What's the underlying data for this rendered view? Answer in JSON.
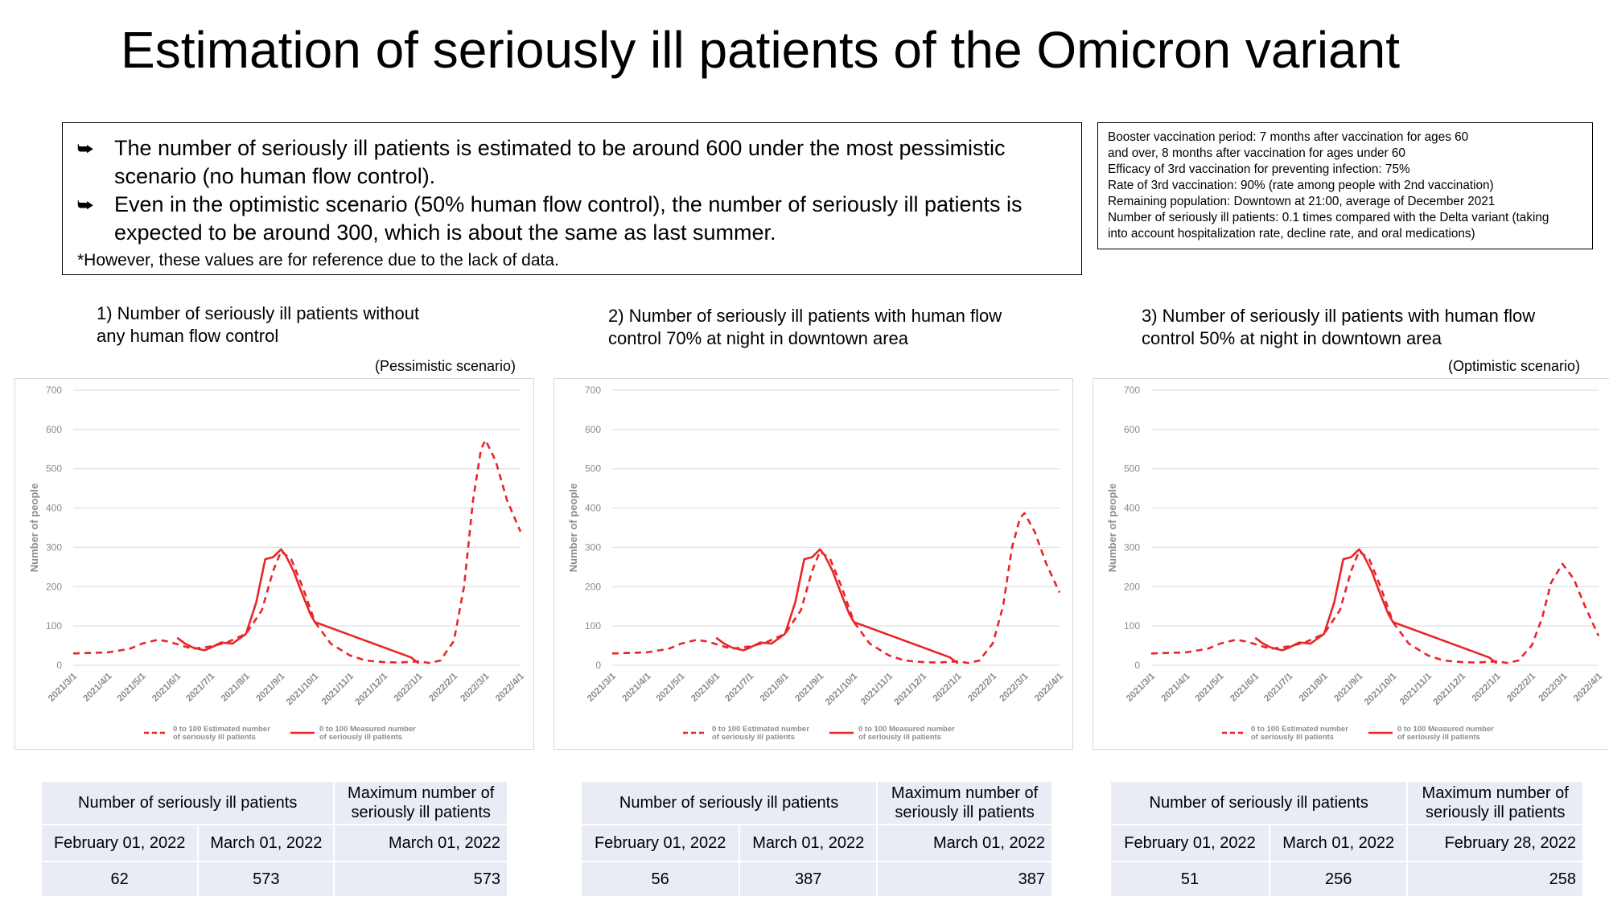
{
  "title": "Estimation of seriously ill patients of the Omicron variant",
  "summary": {
    "bullets": [
      "The number of seriously ill patients is estimated to be around 600 under the most pessimistic scenario (no human flow control).",
      "Even in the optimistic scenario (50% human flow control), the number of seriously ill patients is expected to be around 300, which is about the same as last summer."
    ],
    "note": "*However, these values are for reference due to the lack of data."
  },
  "assumptions": [
    "Booster vaccination period: 7 months after vaccination for ages 60",
    "and over, 8 months after vaccination for ages under 60",
    "Efficacy of 3rd vaccination for preventing infection: 75%",
    "Rate of 3rd vaccination: 90% (rate among people with 2nd vaccination)",
    "Remaining population: Downtown at 21:00, average of December 2021",
    "Number of seriously ill patients: 0.1 times compared with the Delta variant (taking",
    "into account hospitalization rate, decline rate, and oral medications)"
  ],
  "panels": [
    {
      "title_lines": [
        "1) Number of seriously ill patients without",
        "any human flow control"
      ],
      "scenario": "(Pessimistic scenario)",
      "table": {
        "header_left": "Number of seriously ill patients",
        "header_right_lines": [
          "Maximum number of",
          "seriously ill patients"
        ],
        "date1": "February 01, 2022",
        "date2": "March 01, 2022",
        "date3": "March 01, 2022",
        "v1": "62",
        "v2": "573",
        "v3": "573"
      }
    },
    {
      "title_lines": [
        "2) Number of seriously ill patients with human flow",
        "control 70% at night in downtown area"
      ],
      "scenario": "",
      "table": {
        "header_left": "Number of seriously ill patients",
        "header_right_lines": [
          "Maximum number of",
          "seriously ill patients"
        ],
        "date1": "February 01, 2022",
        "date2": "March 01, 2022",
        "date3": "March 01, 2022",
        "v1": "56",
        "v2": "387",
        "v3": "387"
      }
    },
    {
      "title_lines": [
        "3) Number of seriously ill patients with human flow",
        "control 50% at night in downtown area"
      ],
      "scenario": "(Optimistic scenario)",
      "table": {
        "header_left": "Number of seriously ill patients",
        "header_right_lines": [
          "Maximum number of",
          "seriously ill patients"
        ],
        "date1": "February 01, 2022",
        "date2": "March 01, 2022",
        "date3": "February 28, 2022",
        "v1": "51",
        "v2": "256",
        "v3": "258"
      }
    }
  ],
  "colors": {
    "series": "#e8262a",
    "grid": "#d9d9d9",
    "axis_text": "#8c8c8c"
  },
  "chart_data": [
    {
      "type": "line",
      "title": "",
      "xlabel": "",
      "ylabel": "Number of people",
      "ylim": [
        0,
        700
      ],
      "yticks": [
        0,
        100,
        200,
        300,
        400,
        500,
        600,
        700
      ],
      "xlim": [
        "2021/3/1",
        "2022/4/1"
      ],
      "xticks": [
        "2021/3/1",
        "2021/4/1",
        "2021/5/1",
        "2021/6/1",
        "2021/7/1",
        "2021/8/1",
        "2021/9/1",
        "2021/10/1",
        "2021/11/1",
        "2021/12/1",
        "2022/1/1",
        "2022/2/1",
        "2022/3/1",
        "2022/4/1"
      ],
      "grid": true,
      "legend": "bottom",
      "series": [
        {
          "name": "0 to 100 Estimated number of seriously ill patients",
          "style": "dashed",
          "x": [
            "2021/3/1",
            "2021/4/1",
            "2021/4/20",
            "2021/5/1",
            "2021/5/15",
            "2021/5/25",
            "2021/6/5",
            "2021/6/15",
            "2021/7/1",
            "2021/7/15",
            "2021/8/1",
            "2021/8/15",
            "2021/8/25",
            "2021/9/1",
            "2021/9/10",
            "2021/9/20",
            "2021/10/1",
            "2021/10/15",
            "2021/11/1",
            "2021/11/15",
            "2021/12/1",
            "2021/12/15",
            "2022/1/1",
            "2022/1/10",
            "2022/1/20",
            "2022/2/1",
            "2022/2/10",
            "2022/2/18",
            "2022/2/25",
            "2022/3/1",
            "2022/3/10",
            "2022/3/20",
            "2022/4/1"
          ],
          "y": [
            30,
            33,
            42,
            55,
            65,
            60,
            50,
            42,
            48,
            58,
            80,
            140,
            240,
            290,
            270,
            200,
            110,
            55,
            25,
            12,
            8,
            7,
            10,
            6,
            12,
            62,
            200,
            420,
            550,
            573,
            520,
            420,
            340
          ]
        },
        {
          "name": "0 to 100 Measured number of seriously ill patients",
          "style": "solid",
          "x": [
            "2021/6/1",
            "2021/6/8",
            "2021/6/15",
            "2021/6/25",
            "2021/7/1",
            "2021/7/10",
            "2021/7/20",
            "2021/8/1",
            "2021/8/10",
            "2021/8/18",
            "2021/8/25",
            "2021/9/1",
            "2021/9/5",
            "2021/9/12",
            "2021/9/20",
            "2021/9/27",
            "2021/10/1",
            "2021/12/25",
            "2022/1/1"
          ],
          "y": [
            70,
            55,
            45,
            38,
            45,
            58,
            55,
            80,
            160,
            270,
            275,
            295,
            280,
            240,
            180,
            130,
            110,
            20,
            5
          ]
        }
      ]
    },
    {
      "type": "line",
      "title": "",
      "xlabel": "",
      "ylabel": "Number of people",
      "ylim": [
        0,
        700
      ],
      "yticks": [
        0,
        100,
        200,
        300,
        400,
        500,
        600,
        700
      ],
      "xlim": [
        "2021/3/1",
        "2022/4/1"
      ],
      "xticks": [
        "2021/3/1",
        "2021/4/1",
        "2021/5/1",
        "2021/6/1",
        "2021/7/1",
        "2021/8/1",
        "2021/9/1",
        "2021/10/1",
        "2021/11/1",
        "2021/12/1",
        "2022/1/1",
        "2022/2/1",
        "2022/3/1",
        "2022/4/1"
      ],
      "grid": true,
      "legend": "bottom",
      "series": [
        {
          "name": "0 to 100 Estimated number of seriously ill patients",
          "style": "dashed",
          "x": [
            "2021/3/1",
            "2021/4/1",
            "2021/4/20",
            "2021/5/1",
            "2021/5/15",
            "2021/5/25",
            "2021/6/5",
            "2021/6/15",
            "2021/7/1",
            "2021/7/15",
            "2021/8/1",
            "2021/8/15",
            "2021/8/25",
            "2021/9/1",
            "2021/9/10",
            "2021/9/20",
            "2021/10/1",
            "2021/10/15",
            "2021/11/1",
            "2021/11/15",
            "2021/12/1",
            "2021/12/15",
            "2022/1/1",
            "2022/1/10",
            "2022/1/20",
            "2022/2/1",
            "2022/2/10",
            "2022/2/18",
            "2022/2/25",
            "2022/3/1",
            "2022/3/10",
            "2022/3/20",
            "2022/4/1"
          ],
          "y": [
            30,
            33,
            42,
            55,
            65,
            60,
            50,
            42,
            48,
            58,
            80,
            140,
            240,
            290,
            270,
            200,
            110,
            55,
            25,
            12,
            8,
            7,
            10,
            6,
            12,
            56,
            150,
            300,
            375,
            387,
            340,
            260,
            185
          ]
        },
        {
          "name": "0 to 100 Measured number of seriously ill patients",
          "style": "solid",
          "x": [
            "2021/6/1",
            "2021/6/8",
            "2021/6/15",
            "2021/6/25",
            "2021/7/1",
            "2021/7/10",
            "2021/7/20",
            "2021/8/1",
            "2021/8/10",
            "2021/8/18",
            "2021/8/25",
            "2021/9/1",
            "2021/9/5",
            "2021/9/12",
            "2021/9/20",
            "2021/9/27",
            "2021/10/1",
            "2021/12/25",
            "2022/1/1"
          ],
          "y": [
            70,
            55,
            45,
            38,
            45,
            58,
            55,
            80,
            160,
            270,
            275,
            295,
            280,
            240,
            180,
            130,
            110,
            20,
            5
          ]
        }
      ]
    },
    {
      "type": "line",
      "title": "",
      "xlabel": "",
      "ylabel": "Number of people",
      "ylim": [
        0,
        700
      ],
      "yticks": [
        0,
        100,
        200,
        300,
        400,
        500,
        600,
        700
      ],
      "xlim": [
        "2021/3/1",
        "2022/4/1"
      ],
      "xticks": [
        "2021/3/1",
        "2021/4/1",
        "2021/5/1",
        "2021/6/1",
        "2021/7/1",
        "2021/8/1",
        "2021/9/1",
        "2021/10/1",
        "2021/11/1",
        "2021/12/1",
        "2022/1/1",
        "2022/2/1",
        "2022/3/1",
        "2022/4/1"
      ],
      "grid": true,
      "legend": "bottom",
      "series": [
        {
          "name": "0 to 100 Estimated number of seriously ill patients",
          "style": "dashed",
          "x": [
            "2021/3/1",
            "2021/4/1",
            "2021/4/20",
            "2021/5/1",
            "2021/5/15",
            "2021/5/25",
            "2021/6/5",
            "2021/6/15",
            "2021/7/1",
            "2021/7/15",
            "2021/8/1",
            "2021/8/15",
            "2021/8/25",
            "2021/9/1",
            "2021/9/10",
            "2021/9/20",
            "2021/10/1",
            "2021/10/15",
            "2021/11/1",
            "2021/11/15",
            "2021/12/1",
            "2021/12/15",
            "2022/1/1",
            "2022/1/10",
            "2022/1/20",
            "2022/2/1",
            "2022/2/10",
            "2022/2/18",
            "2022/2/28",
            "2022/3/10",
            "2022/3/20",
            "2022/4/1"
          ],
          "y": [
            30,
            33,
            42,
            55,
            65,
            60,
            50,
            42,
            48,
            58,
            80,
            140,
            240,
            290,
            270,
            200,
            110,
            55,
            25,
            12,
            8,
            7,
            10,
            6,
            12,
            51,
            120,
            210,
            258,
            220,
            150,
            75
          ]
        },
        {
          "name": "0 to 100 Measured number of seriously ill patients",
          "style": "solid",
          "x": [
            "2021/6/1",
            "2021/6/8",
            "2021/6/15",
            "2021/6/25",
            "2021/7/1",
            "2021/7/10",
            "2021/7/20",
            "2021/8/1",
            "2021/8/10",
            "2021/8/18",
            "2021/8/25",
            "2021/9/1",
            "2021/9/5",
            "2021/9/12",
            "2021/9/20",
            "2021/9/27",
            "2021/10/1",
            "2021/12/25",
            "2022/1/1"
          ],
          "y": [
            70,
            55,
            45,
            38,
            45,
            58,
            55,
            80,
            160,
            270,
            275,
            295,
            280,
            240,
            180,
            130,
            110,
            20,
            5
          ]
        }
      ]
    }
  ]
}
